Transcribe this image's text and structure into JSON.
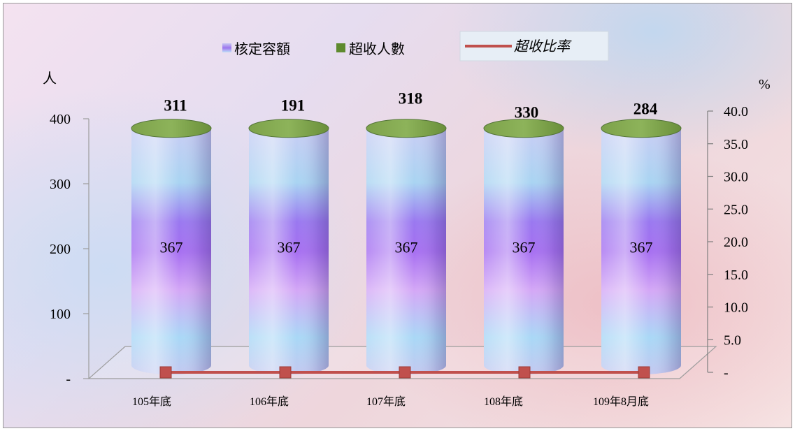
{
  "chart_data": {
    "type": "bar",
    "categories": [
      "105年底",
      "106年底",
      "107年底",
      "108年底",
      "109年8月底"
    ],
    "series": [
      {
        "name": "核定容額",
        "values": [
          367,
          367,
          367,
          367,
          367
        ],
        "color": "#a98cf2",
        "axis": "left"
      },
      {
        "name": "超收人數",
        "values": [
          311,
          191,
          318,
          330,
          284
        ],
        "color": "#6f9a3c",
        "axis": "left"
      },
      {
        "name": "超收比率",
        "values": [
          0,
          0,
          0,
          0,
          0
        ],
        "color": "#c0504d",
        "axis": "right",
        "render": "line"
      }
    ],
    "left_axis": {
      "label": "人",
      "range": [
        0,
        400
      ],
      "ticks": [
        "-",
        "100",
        "200",
        "300",
        "400"
      ]
    },
    "right_axis": {
      "label": "%",
      "range": [
        0,
        40
      ],
      "ticks": [
        "-",
        "5.0",
        "10.0",
        "15.0",
        "20.0",
        "25.0",
        "30.0",
        "35.0",
        "40.0"
      ]
    },
    "legend": {
      "position": "top"
    },
    "grid": false
  }
}
